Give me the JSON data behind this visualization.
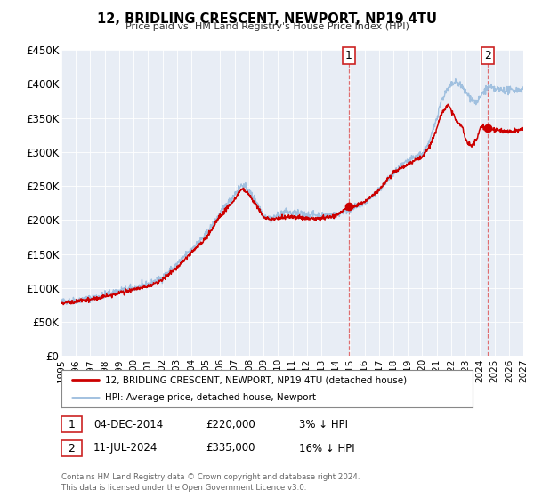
{
  "title": "12, BRIDLING CRESCENT, NEWPORT, NP19 4TU",
  "subtitle": "Price paid vs. HM Land Registry's House Price Index (HPI)",
  "legend_label_red": "12, BRIDLING CRESCENT, NEWPORT, NP19 4TU (detached house)",
  "legend_label_blue": "HPI: Average price, detached house, Newport",
  "annotation1_label": "1",
  "annotation1_date": "04-DEC-2014",
  "annotation1_price": "£220,000",
  "annotation1_pct": "3% ↓ HPI",
  "annotation2_label": "2",
  "annotation2_date": "11-JUL-2024",
  "annotation2_price": "£335,000",
  "annotation2_pct": "16% ↓ HPI",
  "copyright": "Contains HM Land Registry data © Crown copyright and database right 2024.\nThis data is licensed under the Open Government Licence v3.0.",
  "background_color": "#e8edf5",
  "red_color": "#cc0000",
  "blue_color": "#99bbdd",
  "marker1_x": 2014.92,
  "marker1_y": 220000,
  "marker2_x": 2024.54,
  "marker2_y": 335000,
  "vline1_x": 2014.92,
  "vline2_x": 2024.54,
  "xmin": 1995,
  "xmax": 2027,
  "ymin": 0,
  "ymax": 450000,
  "yticks": [
    0,
    50000,
    100000,
    150000,
    200000,
    250000,
    300000,
    350000,
    400000,
    450000
  ],
  "ytick_labels": [
    "£0",
    "£50K",
    "£100K",
    "£150K",
    "£200K",
    "£250K",
    "£300K",
    "£350K",
    "£400K",
    "£450K"
  ],
  "xticks": [
    1995,
    1996,
    1997,
    1998,
    1999,
    2000,
    2001,
    2002,
    2003,
    2004,
    2005,
    2006,
    2007,
    2008,
    2009,
    2010,
    2011,
    2012,
    2013,
    2014,
    2015,
    2016,
    2017,
    2018,
    2019,
    2020,
    2021,
    2022,
    2023,
    2024,
    2025,
    2026,
    2027
  ]
}
